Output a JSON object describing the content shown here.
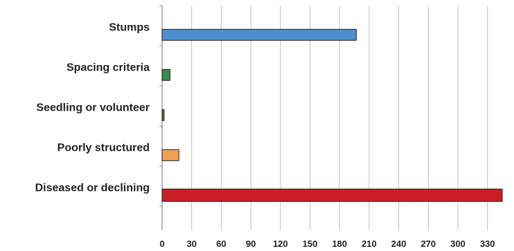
{
  "chart_data": {
    "type": "bar",
    "orientation": "horizontal",
    "categories": [
      "Stumps",
      "Spacing criteria",
      "Seedling or volunteer",
      "Poorly structured",
      "Diseased or declining"
    ],
    "values": [
      197,
      8,
      2,
      17,
      345
    ],
    "colors": [
      "#4a90d0",
      "#3a8a4a",
      "#556b4a",
      "#f0a050",
      "#c81e24"
    ],
    "xticks": [
      0,
      30,
      60,
      90,
      120,
      150,
      180,
      210,
      240,
      270,
      300,
      330
    ],
    "xlim": [
      0,
      345
    ],
    "grid": true,
    "legend": "none"
  }
}
